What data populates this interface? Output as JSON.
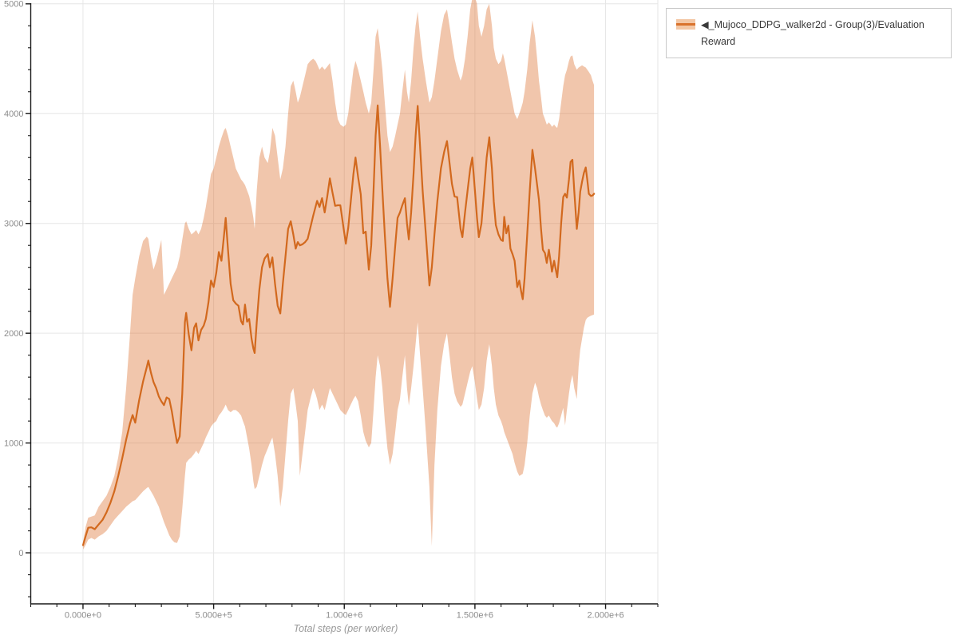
{
  "legend": {
    "items": [
      {
        "label": "◀_Mujoco_DDPG_walker2d - Group(3)/Evaluation Reward",
        "swatch_band_color": "#f3c7a5",
        "swatch_line_color": "#d9722c"
      }
    ]
  },
  "colors": {
    "line": "#d2691e",
    "band": "rgba(222,120,58,0.42)",
    "grid": "#e6e6e6",
    "axis": "#1a1a1a",
    "tick_label": "#8c8c8c",
    "axis_title": "#999999",
    "background": "#ffffff"
  },
  "chart_data": {
    "type": "line",
    "title": "",
    "xlabel": "Total steps (per worker)",
    "ylabel": "",
    "grid": true,
    "legend_position": "top-right",
    "xlim": [
      -200000,
      2200000
    ],
    "ylim": [
      -465,
      5035
    ],
    "x_tick_values": [
      0,
      500000,
      1000000,
      1500000,
      2000000
    ],
    "x_tick_labels": [
      "0.000e+0",
      "5.000e+5",
      "1.000e+6",
      "1.500e+6",
      "2.000e+6"
    ],
    "x_minor_step": 100000,
    "y_tick_values": [
      0,
      1000,
      2000,
      3000,
      4000,
      5000
    ],
    "y_tick_labels": [
      "0",
      "1000",
      "2000",
      "3000",
      "4000",
      "5000"
    ],
    "y_minor_step": 200,
    "series": [
      {
        "name": "_Mujoco_DDPG_walker2d - Group(3)/Evaluation Reward",
        "line_color": "#d2691e",
        "band_color": "rgba(222,120,58,0.42)",
        "x": [
          0,
          10000,
          20000,
          32000,
          45000,
          60000,
          75000,
          90000,
          105000,
          120000,
          135000,
          150000,
          165000,
          180000,
          190000,
          200000,
          215000,
          230000,
          244000,
          250000,
          260000,
          270000,
          280000,
          290000,
          300000,
          310000,
          320000,
          330000,
          340000,
          350000,
          360000,
          370000,
          380000,
          390000,
          395000,
          405000,
          415000,
          425000,
          433000,
          442000,
          452000,
          462000,
          470000,
          480000,
          490000,
          500000,
          510000,
          520000,
          530000,
          540000,
          546000,
          555000,
          565000,
          575000,
          585000,
          595000,
          605000,
          612000,
          620000,
          628000,
          636000,
          645000,
          652000,
          657000,
          665000,
          675000,
          685000,
          695000,
          707000,
          715000,
          725000,
          735000,
          745000,
          755000,
          765000,
          775000,
          785000,
          795000,
          805000,
          814000,
          822000,
          830000,
          840000,
          850000,
          860000,
          870000,
          881000,
          890000,
          896000,
          905000,
          915000,
          925000,
          935000,
          945000,
          955000,
          965000,
          975000,
          985000,
          997000,
          1006000,
          1015000,
          1025000,
          1035000,
          1043000,
          1053000,
          1063000,
          1073000,
          1082000,
          1094000,
          1103000,
          1112000,
          1120000,
          1128000,
          1137000,
          1146000,
          1155000,
          1165000,
          1175000,
          1185000,
          1195000,
          1204000,
          1213000,
          1222000,
          1232000,
          1240000,
          1247000,
          1256000,
          1265000,
          1273000,
          1281000,
          1290000,
          1300000,
          1312000,
          1326000,
          1335000,
          1345000,
          1356000,
          1370000,
          1382000,
          1393000,
          1403000,
          1412000,
          1422000,
          1432000,
          1445000,
          1452000,
          1462000,
          1472000,
          1482000,
          1490000,
          1500000,
          1508000,
          1515000,
          1525000,
          1535000,
          1545000,
          1555000,
          1565000,
          1572000,
          1580000,
          1590000,
          1600000,
          1607000,
          1612000,
          1620000,
          1628000,
          1636000,
          1644000,
          1652000,
          1662000,
          1670000,
          1677000,
          1683000,
          1690000,
          1700000,
          1710000,
          1720000,
          1730000,
          1738000,
          1745000,
          1753000,
          1760000,
          1768000,
          1775000,
          1783000,
          1790000,
          1795000,
          1803000,
          1810000,
          1815000,
          1822000,
          1830000,
          1838000,
          1845000,
          1852000,
          1860000,
          1866000,
          1873000,
          1880000,
          1890000,
          1897000,
          1903000,
          1910000,
          1917000,
          1924000,
          1930000,
          1936000,
          1944000,
          1950000,
          1956000
        ],
        "mean": [
          70,
          150,
          228,
          232,
          215,
          258,
          300,
          368,
          455,
          560,
          700,
          860,
          1030,
          1180,
          1255,
          1185,
          1390,
          1560,
          1690,
          1750,
          1640,
          1555,
          1500,
          1425,
          1380,
          1345,
          1415,
          1400,
          1290,
          1140,
          1000,
          1060,
          1450,
          2100,
          2185,
          1985,
          1845,
          2050,
          2090,
          1935,
          2030,
          2070,
          2130,
          2280,
          2480,
          2420,
          2550,
          2740,
          2660,
          2900,
          3050,
          2760,
          2450,
          2300,
          2270,
          2250,
          2110,
          2080,
          2260,
          2105,
          2130,
          1950,
          1860,
          1820,
          2100,
          2400,
          2600,
          2680,
          2720,
          2600,
          2690,
          2450,
          2250,
          2180,
          2450,
          2700,
          2950,
          3020,
          2900,
          2770,
          2830,
          2800,
          2810,
          2830,
          2860,
          2960,
          3070,
          3150,
          3205,
          3150,
          3230,
          3100,
          3250,
          3410,
          3280,
          3160,
          3165,
          3165,
          2960,
          2815,
          2960,
          3200,
          3450,
          3600,
          3420,
          3265,
          2910,
          2925,
          2580,
          2800,
          3300,
          3800,
          4075,
          3700,
          3300,
          2900,
          2500,
          2240,
          2500,
          2800,
          3050,
          3100,
          3165,
          3230,
          3000,
          2855,
          3100,
          3450,
          3800,
          4070,
          3700,
          3300,
          2900,
          2435,
          2600,
          2900,
          3200,
          3500,
          3650,
          3750,
          3550,
          3360,
          3245,
          3240,
          2950,
          2875,
          3100,
          3300,
          3500,
          3600,
          3300,
          3050,
          2875,
          3000,
          3300,
          3600,
          3785,
          3500,
          3200,
          2985,
          2900,
          2850,
          2840,
          3060,
          2910,
          2980,
          2770,
          2720,
          2660,
          2420,
          2480,
          2380,
          2310,
          2500,
          2900,
          3300,
          3670,
          3500,
          3350,
          3215,
          2950,
          2760,
          2730,
          2640,
          2760,
          2650,
          2560,
          2660,
          2570,
          2510,
          2700,
          3000,
          3240,
          3270,
          3235,
          3400,
          3560,
          3580,
          3300,
          2950,
          3100,
          3290,
          3380,
          3460,
          3510,
          3400,
          3270,
          3250,
          3255,
          3270
        ],
        "lower": [
          30,
          70,
          120,
          135,
          120,
          150,
          170,
          200,
          250,
          300,
          340,
          380,
          420,
          450,
          470,
          480,
          520,
          560,
          590,
          600,
          560,
          520,
          470,
          420,
          350,
          280,
          220,
          160,
          120,
          95,
          90,
          150,
          400,
          700,
          820,
          850,
          870,
          900,
          930,
          900,
          950,
          1000,
          1050,
          1100,
          1150,
          1180,
          1200,
          1250,
          1280,
          1320,
          1350,
          1300,
          1280,
          1300,
          1300,
          1280,
          1250,
          1200,
          1150,
          1050,
          950,
          800,
          650,
          580,
          600,
          700,
          800,
          880,
          950,
          1000,
          1050,
          900,
          700,
          420,
          600,
          900,
          1200,
          1450,
          1500,
          1350,
          1200,
          700,
          900,
          1100,
          1300,
          1400,
          1500,
          1450,
          1400,
          1300,
          1350,
          1300,
          1400,
          1500,
          1450,
          1400,
          1350,
          1300,
          1270,
          1255,
          1300,
          1350,
          1400,
          1430,
          1380,
          1250,
          1100,
          1020,
          960,
          1000,
          1300,
          1600,
          1800,
          1700,
          1500,
          1200,
          950,
          800,
          900,
          1100,
          1300,
          1400,
          1600,
          1800,
          1500,
          1340,
          1500,
          1700,
          1900,
          2100,
          1800,
          1500,
          1100,
          600,
          60,
          800,
          1300,
          1700,
          1900,
          2000,
          1800,
          1600,
          1450,
          1380,
          1330,
          1350,
          1450,
          1550,
          1650,
          1700,
          1550,
          1400,
          1300,
          1350,
          1500,
          1750,
          1900,
          1700,
          1500,
          1350,
          1250,
          1200,
          1150,
          1100,
          1050,
          1000,
          950,
          900,
          820,
          740,
          700,
          710,
          720,
          800,
          1000,
          1250,
          1450,
          1550,
          1500,
          1420,
          1350,
          1300,
          1250,
          1230,
          1250,
          1220,
          1200,
          1180,
          1150,
          1140,
          1180,
          1250,
          1320,
          1160,
          1300,
          1450,
          1550,
          1620,
          1500,
          1400,
          1700,
          1850,
          1950,
          2050,
          2120,
          2140,
          2150,
          2160,
          2165,
          2170
        ],
        "upper": [
          95,
          235,
          320,
          330,
          340,
          420,
          470,
          520,
          600,
          700,
          870,
          1100,
          1500,
          2000,
          2350,
          2500,
          2700,
          2840,
          2880,
          2860,
          2700,
          2580,
          2650,
          2750,
          2850,
          2350,
          2400,
          2450,
          2500,
          2550,
          2600,
          2700,
          2850,
          3000,
          3020,
          2950,
          2900,
          2920,
          2940,
          2900,
          2950,
          3050,
          3150,
          3300,
          3450,
          3500,
          3600,
          3700,
          3780,
          3850,
          3870,
          3800,
          3700,
          3600,
          3500,
          3450,
          3400,
          3380,
          3350,
          3300,
          3250,
          3150,
          3050,
          2950,
          3300,
          3600,
          3700,
          3600,
          3550,
          3650,
          3870,
          3800,
          3600,
          3400,
          3500,
          3700,
          4000,
          4250,
          4300,
          4200,
          4100,
          4150,
          4250,
          4350,
          4450,
          4480,
          4500,
          4480,
          4450,
          4400,
          4430,
          4400,
          4430,
          4460,
          4300,
          4100,
          3950,
          3900,
          3880,
          3900,
          4000,
          4200,
          4400,
          4480,
          4400,
          4300,
          4200,
          4100,
          4000,
          4100,
          4400,
          4700,
          4780,
          4600,
          4400,
          4100,
          3800,
          3650,
          3700,
          3800,
          3900,
          4000,
          4200,
          4400,
          4200,
          4100,
          4300,
          4600,
          4800,
          4930,
          4700,
          4500,
          4300,
          4100,
          4150,
          4300,
          4500,
          4750,
          4900,
          4950,
          4800,
          4650,
          4500,
          4400,
          4300,
          4350,
          4500,
          4700,
          4950,
          5050,
          5060,
          5000,
          4800,
          4700,
          4800,
          4950,
          5000,
          4800,
          4600,
          4500,
          4450,
          4480,
          4550,
          4500,
          4400,
          4300,
          4200,
          4100,
          4000,
          3950,
          4000,
          4050,
          4100,
          4200,
          4400,
          4650,
          4850,
          4700,
          4500,
          4300,
          4150,
          4000,
          3950,
          3900,
          3920,
          3900,
          3880,
          3900,
          3880,
          3870,
          3950,
          4100,
          4250,
          4350,
          4400,
          4480,
          4520,
          4530,
          4450,
          4400,
          4420,
          4430,
          4440,
          4430,
          4420,
          4400,
          4380,
          4350,
          4300,
          4260
        ]
      }
    ]
  }
}
